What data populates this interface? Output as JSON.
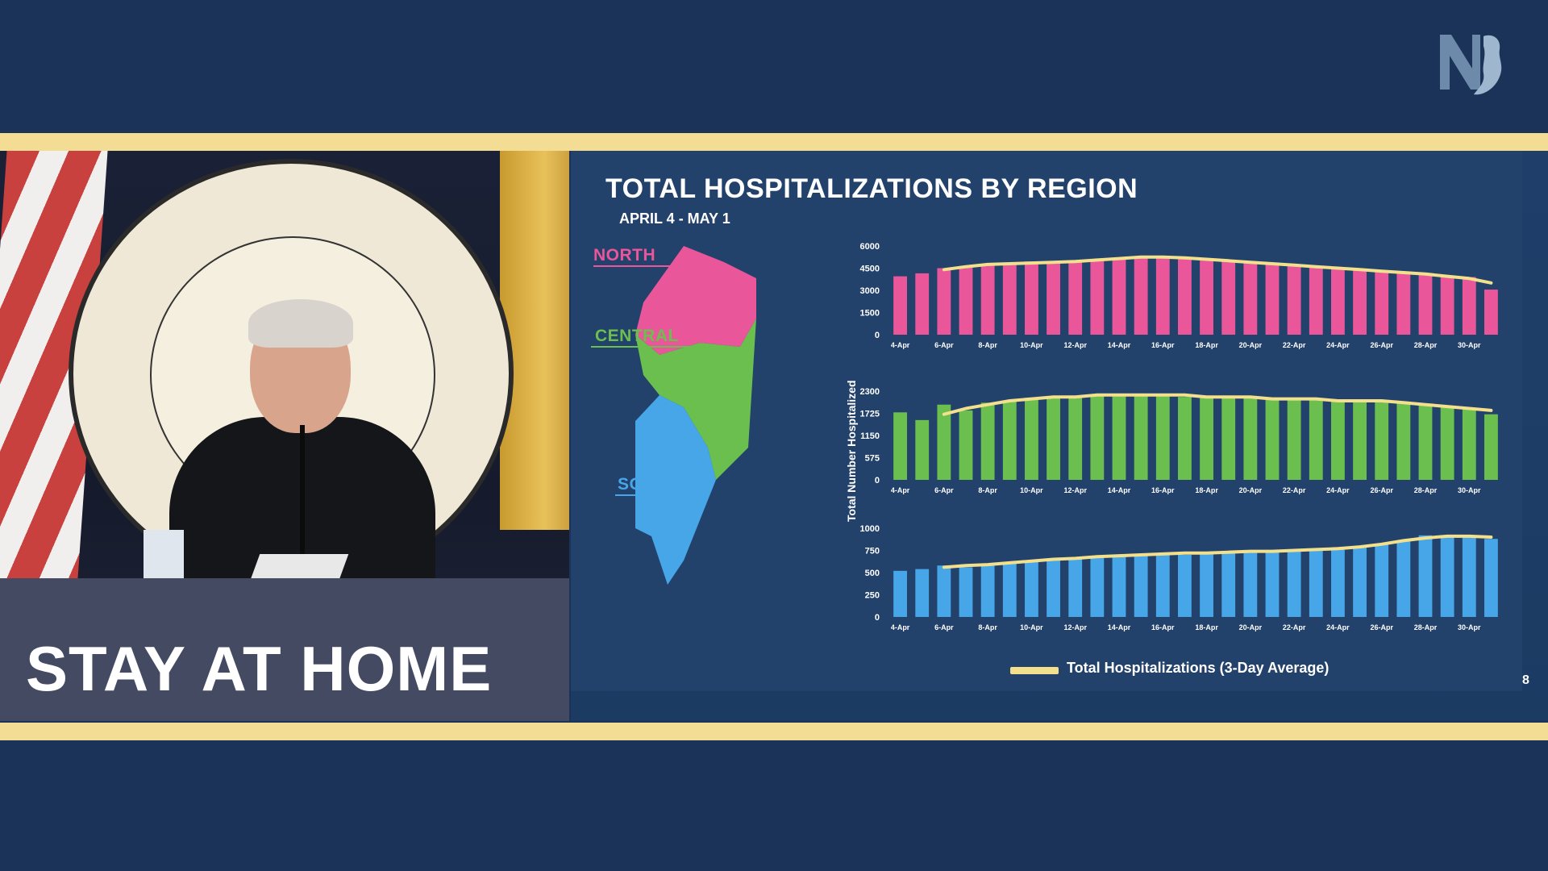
{
  "podium": {
    "text": "STAY AT HOME"
  },
  "slide": {
    "title": "TOTAL HOSPITALIZATIONS BY REGION",
    "subtitle": "APRIL 4 - MAY 1",
    "y_axis_title": "Total Number Hospitalized",
    "legend_label": "Total Hospitalizations (3-Day Average)",
    "page_number": "8",
    "regions": [
      {
        "label": "NORTH",
        "color": "#e9579a"
      },
      {
        "label": "CENTRAL",
        "color": "#6bbf4f"
      },
      {
        "label": "SOUTH",
        "color": "#46a6e8"
      }
    ]
  },
  "colors": {
    "background": "#1b3358",
    "stripe": "#f3dc93",
    "slide": "#22416b",
    "average_line": "#f2e08c"
  },
  "chart_data": [
    {
      "type": "bar",
      "title": "",
      "series_name": "NORTH",
      "color": "#e9579a",
      "categories": [
        "4-Apr",
        "5-Apr",
        "6-Apr",
        "7-Apr",
        "8-Apr",
        "9-Apr",
        "10-Apr",
        "11-Apr",
        "12-Apr",
        "13-Apr",
        "14-Apr",
        "15-Apr",
        "16-Apr",
        "17-Apr",
        "18-Apr",
        "19-Apr",
        "20-Apr",
        "21-Apr",
        "22-Apr",
        "23-Apr",
        "24-Apr",
        "25-Apr",
        "26-Apr",
        "27-Apr",
        "28-Apr",
        "29-Apr",
        "30-Apr",
        "1-May"
      ],
      "tick_labels": [
        "4-Apr",
        "6-Apr",
        "8-Apr",
        "10-Apr",
        "12-Apr",
        "14-Apr",
        "16-Apr",
        "18-Apr",
        "20-Apr",
        "22-Apr",
        "24-Apr",
        "26-Apr",
        "28-Apr",
        "30-Apr"
      ],
      "values": [
        3950,
        4150,
        4500,
        4600,
        4800,
        4850,
        4950,
        4900,
        5000,
        5100,
        5200,
        5300,
        5300,
        5200,
        5150,
        5000,
        4900,
        4850,
        4700,
        4600,
        4550,
        4450,
        4350,
        4200,
        4100,
        4000,
        3900,
        3050
      ],
      "average": [
        null,
        null,
        4400,
        4600,
        4750,
        4800,
        4850,
        4900,
        4950,
        5050,
        5150,
        5250,
        5250,
        5200,
        5100,
        5000,
        4900,
        4800,
        4700,
        4600,
        4500,
        4400,
        4300,
        4200,
        4100,
        3950,
        3800,
        3500
      ],
      "yticks": [
        0,
        1500,
        3000,
        4500,
        6000
      ],
      "ylim": [
        0,
        6000
      ]
    },
    {
      "type": "bar",
      "title": "",
      "series_name": "CENTRAL",
      "color": "#6bbf4f",
      "categories": [
        "4-Apr",
        "5-Apr",
        "6-Apr",
        "7-Apr",
        "8-Apr",
        "9-Apr",
        "10-Apr",
        "11-Apr",
        "12-Apr",
        "13-Apr",
        "14-Apr",
        "15-Apr",
        "16-Apr",
        "17-Apr",
        "18-Apr",
        "19-Apr",
        "20-Apr",
        "21-Apr",
        "22-Apr",
        "23-Apr",
        "24-Apr",
        "25-Apr",
        "26-Apr",
        "27-Apr",
        "28-Apr",
        "29-Apr",
        "30-Apr",
        "1-May"
      ],
      "tick_labels": [
        "4-Apr",
        "6-Apr",
        "8-Apr",
        "10-Apr",
        "12-Apr",
        "14-Apr",
        "16-Apr",
        "18-Apr",
        "20-Apr",
        "22-Apr",
        "24-Apr",
        "26-Apr",
        "28-Apr",
        "30-Apr"
      ],
      "values": [
        1750,
        1550,
        1950,
        1800,
        2000,
        2050,
        2100,
        2150,
        2150,
        2200,
        2200,
        2200,
        2200,
        2150,
        2150,
        2150,
        2150,
        2100,
        2100,
        2100,
        2050,
        2050,
        2050,
        2000,
        1950,
        1900,
        1850,
        1700
      ],
      "average": [
        null,
        null,
        1700,
        1850,
        1950,
        2050,
        2100,
        2150,
        2150,
        2200,
        2200,
        2200,
        2200,
        2200,
        2150,
        2150,
        2150,
        2100,
        2100,
        2100,
        2050,
        2050,
        2050,
        2000,
        1950,
        1900,
        1850,
        1800
      ],
      "yticks": [
        0,
        575,
        1150,
        1725,
        2300
      ],
      "ylim": [
        0,
        2300
      ]
    },
    {
      "type": "bar",
      "title": "",
      "series_name": "SOUTH",
      "color": "#46a6e8",
      "categories": [
        "4-Apr",
        "5-Apr",
        "6-Apr",
        "7-Apr",
        "8-Apr",
        "9-Apr",
        "10-Apr",
        "11-Apr",
        "12-Apr",
        "13-Apr",
        "14-Apr",
        "15-Apr",
        "16-Apr",
        "17-Apr",
        "18-Apr",
        "19-Apr",
        "20-Apr",
        "21-Apr",
        "22-Apr",
        "23-Apr",
        "24-Apr",
        "25-Apr",
        "26-Apr",
        "27-Apr",
        "28-Apr",
        "29-Apr",
        "30-Apr",
        "1-May"
      ],
      "tick_labels": [
        "4-Apr",
        "6-Apr",
        "8-Apr",
        "10-Apr",
        "12-Apr",
        "14-Apr",
        "16-Apr",
        "18-Apr",
        "20-Apr",
        "22-Apr",
        "24-Apr",
        "26-Apr",
        "28-Apr",
        "30-Apr"
      ],
      "values": [
        520,
        540,
        580,
        560,
        600,
        620,
        620,
        650,
        660,
        680,
        690,
        700,
        710,
        700,
        720,
        730,
        740,
        740,
        750,
        760,
        770,
        790,
        820,
        850,
        920,
        900,
        900,
        880
      ],
      "average": [
        null,
        null,
        560,
        580,
        590,
        610,
        630,
        650,
        660,
        680,
        690,
        700,
        710,
        720,
        720,
        730,
        740,
        740,
        750,
        760,
        770,
        790,
        820,
        860,
        890,
        910,
        910,
        900
      ],
      "yticks": [
        0,
        250,
        500,
        750,
        1000
      ],
      "ylim": [
        0,
        1000
      ]
    }
  ]
}
